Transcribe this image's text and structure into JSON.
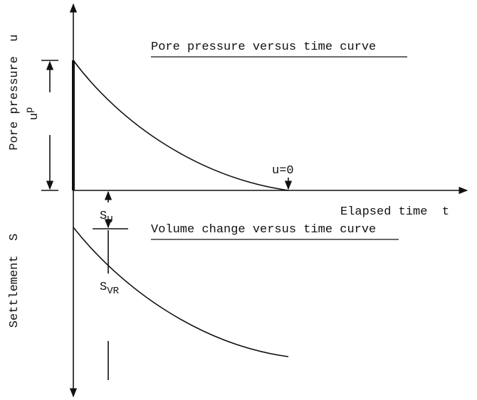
{
  "top_curve": {
    "title": "Pore pressure versus time curve",
    "axis_label": "Pore pressure  u",
    "dimension": "u",
    "dimension_sup": "p",
    "end_label": "u=0"
  },
  "time_axis": {
    "label": "Elapsed time  t"
  },
  "bottom_curve": {
    "title": "Volume change versus time curve",
    "axis_label": "Settlement  S"
  },
  "su": {
    "base": "S",
    "sub": "U"
  },
  "svr": {
    "base": "S",
    "sub": "VR"
  }
}
